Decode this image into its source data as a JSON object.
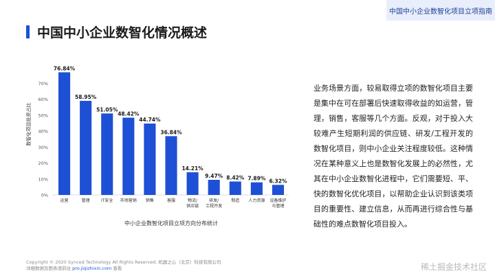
{
  "header": {
    "tag": "中国中小企业数智化项目立项指南",
    "title": "中国中小企业数智化情况概述"
  },
  "chart_data": {
    "type": "bar",
    "title": "中小企业数智化项目立项方向分布统计",
    "ylabel": "数智化项目投资占比",
    "xlabel": "",
    "ylim": [
      0,
      80
    ],
    "yticks": [
      "0%",
      "10%",
      "20%",
      "30%",
      "40%",
      "50%",
      "60%",
      "70%"
    ],
    "categories": [
      "运营",
      "管理",
      "IT安全",
      "市场营销",
      "销售",
      "客服",
      "物流/\n供应链",
      "研发/\n工程开发",
      "制造",
      "人力资源",
      "设备维护\n与管理"
    ],
    "values": [
      76.84,
      58.95,
      51.05,
      48.42,
      44.74,
      36.84,
      14.21,
      9.47,
      8.42,
      7.89,
      6.32
    ],
    "data_labels": [
      "76.84%",
      "58.95%",
      "51.05%",
      "48.42%",
      "44.74%",
      "36.84%",
      "14.21%",
      "9.47%",
      "8.42%",
      "7.89%",
      "6.32%"
    ],
    "bar_color": "#1e50d6",
    "grid": false,
    "legend": "none"
  },
  "description": "业务场景方面，较易取得立项的数智化项目主要是集中在可在部署后快速取得收益的如运营，管理，销售，客服等几个方面。反观，对于投入大较难产生短期利润的供应链、研发/工程开发的数智化项目，则中小企业关注程度较低。这种情况在某种意义上也是数智化发展上的必然性，尤其在中小企业数智化进程中，它们需要短、平、快的数智化优化项目，以帮助企业认识到该类项目的重要性、建立信息，从而再进行综合性与基础性的难点数智化项目投入。",
  "footer": {
    "copyright": "Copyright © 2020 Synced Technology All Rights Reserved. 机器之心（北京）科技有限公司",
    "more_prefix": "详细数据及图表请前往",
    "link": "pro.jiqizhixin.com",
    "more_suffix": "查看"
  },
  "watermark": "稀土掘金技术社区"
}
